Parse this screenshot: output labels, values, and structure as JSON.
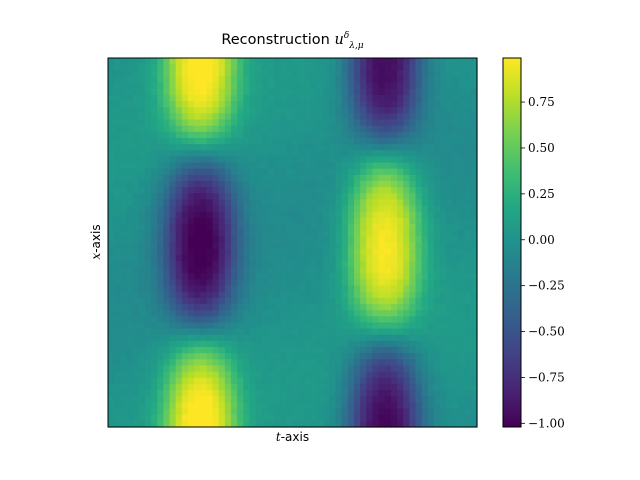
{
  "chart_data": {
    "type": "heatmap",
    "title_prefix": "Reconstruction",
    "title_math": "u",
    "title_sup": "δ",
    "title_sub": "λ,μ",
    "xlabel_var": "t",
    "xlabel_suffix": "-axis",
    "ylabel_var": "x",
    "ylabel_suffix": "-axis",
    "colormap": "viridis",
    "colorbar": {
      "range": [
        -1.02,
        0.99
      ],
      "ticks": [
        0.75,
        0.5,
        0.25,
        0.0,
        -0.25,
        -0.5,
        -0.75,
        -1.0
      ],
      "tick_labels": [
        "0.75",
        "0.50",
        "0.25",
        "0.00",
        "−0.25",
        "−0.50",
        "−0.75",
        "−1.00"
      ]
    },
    "field_description": {
      "t_range": [
        0,
        1
      ],
      "x_range": [
        0,
        1
      ],
      "blobs": [
        {
          "t": 0.25,
          "x": 0.07,
          "value": 0.92
        },
        {
          "t": 0.25,
          "x": 0.5,
          "value": -1.0
        },
        {
          "t": 0.25,
          "x": 0.93,
          "value": 0.9
        },
        {
          "t": 0.75,
          "x": 0.07,
          "value": -0.85
        },
        {
          "t": 0.75,
          "x": 0.5,
          "value": 0.99
        },
        {
          "t": 0.75,
          "x": 0.93,
          "value": -0.9
        }
      ]
    },
    "grid": false
  }
}
